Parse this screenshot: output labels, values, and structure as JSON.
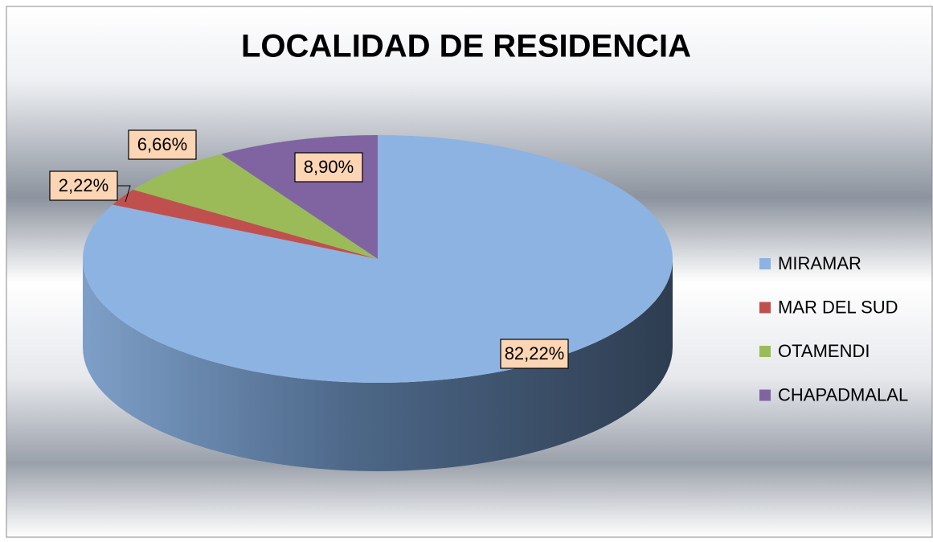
{
  "chart_data": {
    "type": "pie3d",
    "title": "LOCALIDAD DE RESIDENCIA",
    "categories": [
      "MIRAMAR",
      "MAR DEL SUD",
      "OTAMENDI",
      "CHAPADMALAL"
    ],
    "values": [
      82.22,
      2.22,
      6.66,
      8.9
    ],
    "value_labels": [
      "82,22%",
      "2,22%",
      "6,66%",
      "8,90%"
    ],
    "colors": [
      "#8db3e2",
      "#c0504d",
      "#9bbb59",
      "#8064a2"
    ],
    "legend": "right"
  }
}
